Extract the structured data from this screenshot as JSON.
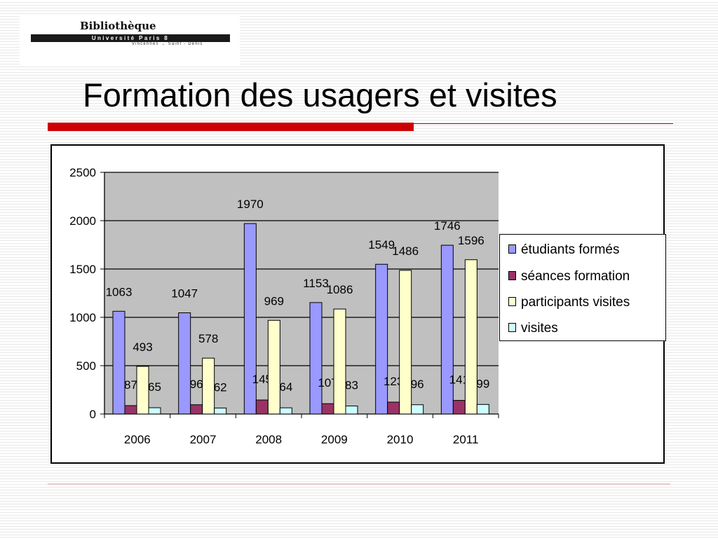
{
  "logo": {
    "title": "Bibliothèque",
    "band": "Université Paris 8",
    "subtitle": "Vincennes → Saint - Denis"
  },
  "slide": {
    "title": "Formation des usagers et visites"
  },
  "colors": {
    "title_rule": "#cc0000",
    "plot_background": "#c0c0c0"
  },
  "chart_data": {
    "type": "bar",
    "title": "",
    "xlabel": "",
    "ylabel": "",
    "categories": [
      "2006",
      "2007",
      "2008",
      "2009",
      "2010",
      "2011"
    ],
    "ylim": [
      0,
      2500
    ],
    "yticks": [
      0,
      500,
      1000,
      1500,
      2000,
      2500
    ],
    "grid": true,
    "legend_position": "right",
    "series": [
      {
        "name": "étudiants formés",
        "color": "#9999ff",
        "values": [
          1063,
          1047,
          1970,
          1153,
          1549,
          1746
        ],
        "labels": [
          "1063",
          "1047",
          "1970",
          "1153",
          "1549",
          "1746"
        ]
      },
      {
        "name": "séances formation",
        "color": "#993366",
        "values": [
          87,
          96,
          145,
          107,
          123,
          141
        ],
        "labels": [
          "87",
          "96",
          "145",
          "107",
          "123",
          "141"
        ]
      },
      {
        "name": "participants visites",
        "color": "#ffffcc",
        "values": [
          493,
          578,
          969,
          1086,
          1486,
          1596
        ],
        "labels": [
          "493",
          "578",
          "969",
          "1086",
          "1486",
          "1596"
        ]
      },
      {
        "name": "visites",
        "color": "#ccffff",
        "values": [
          65,
          62,
          64,
          83,
          96,
          99
        ],
        "labels": [
          "65",
          "62",
          "64",
          "83",
          "96",
          "99"
        ]
      }
    ]
  }
}
